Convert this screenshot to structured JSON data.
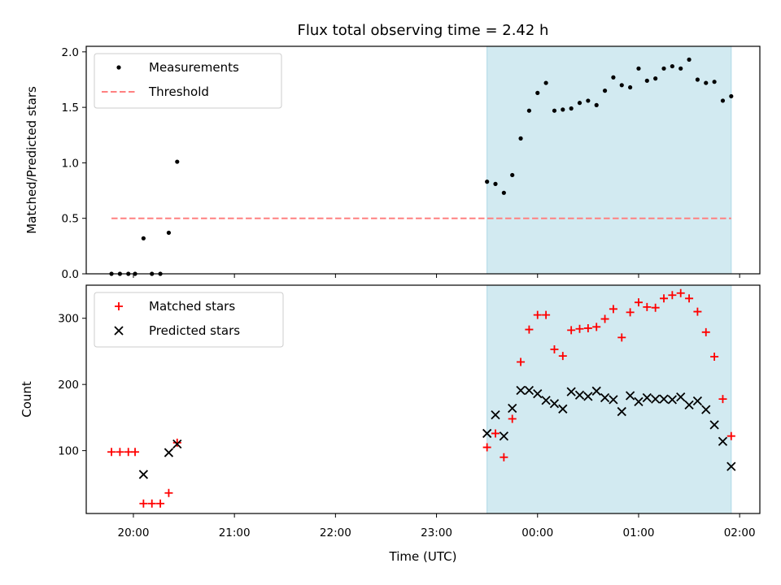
{
  "chart_data": {
    "type": "scatter",
    "title": "Flux total observing time = 2.42 h",
    "xlabel": "Time (UTC)",
    "x_ticks": [
      "20:00",
      "21:00",
      "22:00",
      "23:00",
      "00:00",
      "01:00",
      "02:00"
    ],
    "x_range": [
      "19:32",
      "02:12"
    ],
    "highlight_span": {
      "start": "23:30",
      "end": "01:55",
      "color": "#add8e6"
    },
    "panels": [
      {
        "name": "ratio",
        "ylabel": "Matched/Predicted stars",
        "ylim": [
          0,
          2.05
        ],
        "y_ticks": [
          "0.0",
          "0.5",
          "1.0",
          "1.5",
          "2.0"
        ],
        "legend": {
          "position": "top-left",
          "entries": [
            "Measurements",
            "Threshold"
          ]
        },
        "threshold": {
          "name": "Threshold",
          "value": 0.5,
          "x_start": "19:47",
          "x_end": "01:55",
          "color": "#ff8080",
          "style": "dashed"
        },
        "series": [
          {
            "name": "Measurements",
            "marker": "dot",
            "color": "#000000",
            "points": [
              [
                "19:47",
                0.0
              ],
              [
                "19:52",
                0.0
              ],
              [
                "19:57",
                0.0
              ],
              [
                "20:01",
                0.0
              ],
              [
                "20:06",
                0.32
              ],
              [
                "20:11",
                0.0
              ],
              [
                "20:16",
                0.0
              ],
              [
                "20:21",
                0.37
              ],
              [
                "20:26",
                1.01
              ],
              [
                "23:30",
                0.83
              ],
              [
                "23:35",
                0.81
              ],
              [
                "23:40",
                0.73
              ],
              [
                "23:45",
                0.89
              ],
              [
                "23:50",
                1.22
              ],
              [
                "23:55",
                1.47
              ],
              [
                "00:00",
                1.63
              ],
              [
                "00:05",
                1.72
              ],
              [
                "00:10",
                1.47
              ],
              [
                "00:15",
                1.48
              ],
              [
                "00:20",
                1.49
              ],
              [
                "00:25",
                1.54
              ],
              [
                "00:30",
                1.56
              ],
              [
                "00:35",
                1.52
              ],
              [
                "00:40",
                1.65
              ],
              [
                "00:45",
                1.77
              ],
              [
                "00:50",
                1.7
              ],
              [
                "00:55",
                1.68
              ],
              [
                "01:00",
                1.85
              ],
              [
                "01:05",
                1.74
              ],
              [
                "01:10",
                1.76
              ],
              [
                "01:15",
                1.85
              ],
              [
                "01:20",
                1.87
              ],
              [
                "01:25",
                1.85
              ],
              [
                "01:30",
                1.93
              ],
              [
                "01:35",
                1.75
              ],
              [
                "01:40",
                1.72
              ],
              [
                "01:45",
                1.73
              ],
              [
                "01:50",
                1.56
              ],
              [
                "01:55",
                1.6
              ]
            ]
          }
        ]
      },
      {
        "name": "counts",
        "ylabel": "Count",
        "ylim": [
          5,
          350
        ],
        "y_ticks": [
          "100",
          "200",
          "300"
        ],
        "legend": {
          "position": "top-left",
          "entries": [
            "Matched stars",
            "Predicted stars"
          ]
        },
        "series": [
          {
            "name": "Matched stars",
            "marker": "plus",
            "color": "#ff0000",
            "points": [
              [
                "19:47",
                98
              ],
              [
                "19:52",
                98
              ],
              [
                "19:57",
                98
              ],
              [
                "20:01",
                98
              ],
              [
                "20:06",
                20
              ],
              [
                "20:11",
                20
              ],
              [
                "20:16",
                20
              ],
              [
                "20:21",
                36
              ],
              [
                "20:26",
                112
              ],
              [
                "23:30",
                105
              ],
              [
                "23:35",
                126
              ],
              [
                "23:40",
                90
              ],
              [
                "23:45",
                148
              ],
              [
                "23:50",
                234
              ],
              [
                "23:55",
                283
              ],
              [
                "00:00",
                305
              ],
              [
                "00:05",
                305
              ],
              [
                "00:10",
                253
              ],
              [
                "00:15",
                243
              ],
              [
                "00:20",
                282
              ],
              [
                "00:25",
                284
              ],
              [
                "00:30",
                285
              ],
              [
                "00:35",
                287
              ],
              [
                "00:40",
                299
              ],
              [
                "00:45",
                314
              ],
              [
                "00:50",
                271
              ],
              [
                "00:55",
                309
              ],
              [
                "01:00",
                324
              ],
              [
                "01:05",
                317
              ],
              [
                "01:10",
                316
              ],
              [
                "01:15",
                330
              ],
              [
                "01:20",
                335
              ],
              [
                "01:25",
                338
              ],
              [
                "01:30",
                330
              ],
              [
                "01:35",
                310
              ],
              [
                "01:40",
                279
              ],
              [
                "01:45",
                242
              ],
              [
                "01:50",
                178
              ],
              [
                "01:55",
                122
              ]
            ]
          },
          {
            "name": "Predicted stars",
            "marker": "x",
            "color": "#000000",
            "points": [
              [
                "20:06",
                64
              ],
              [
                "20:21",
                97
              ],
              [
                "20:26",
                110
              ],
              [
                "23:30",
                126
              ],
              [
                "23:35",
                154
              ],
              [
                "23:40",
                122
              ],
              [
                "23:45",
                164
              ],
              [
                "23:50",
                191
              ],
              [
                "23:55",
                191
              ],
              [
                "00:00",
                186
              ],
              [
                "00:05",
                176
              ],
              [
                "00:10",
                171
              ],
              [
                "00:15",
                163
              ],
              [
                "00:20",
                189
              ],
              [
                "00:25",
                184
              ],
              [
                "00:30",
                182
              ],
              [
                "00:35",
                190
              ],
              [
                "00:40",
                180
              ],
              [
                "00:45",
                177
              ],
              [
                "00:50",
                159
              ],
              [
                "00:55",
                183
              ],
              [
                "01:00",
                174
              ],
              [
                "01:05",
                180
              ],
              [
                "01:10",
                178
              ],
              [
                "01:15",
                178
              ],
              [
                "01:20",
                177
              ],
              [
                "01:25",
                181
              ],
              [
                "01:30",
                169
              ],
              [
                "01:35",
                175
              ],
              [
                "01:40",
                162
              ],
              [
                "01:45",
                139
              ],
              [
                "01:50",
                114
              ],
              [
                "01:55",
                76
              ]
            ]
          }
        ]
      }
    ]
  }
}
